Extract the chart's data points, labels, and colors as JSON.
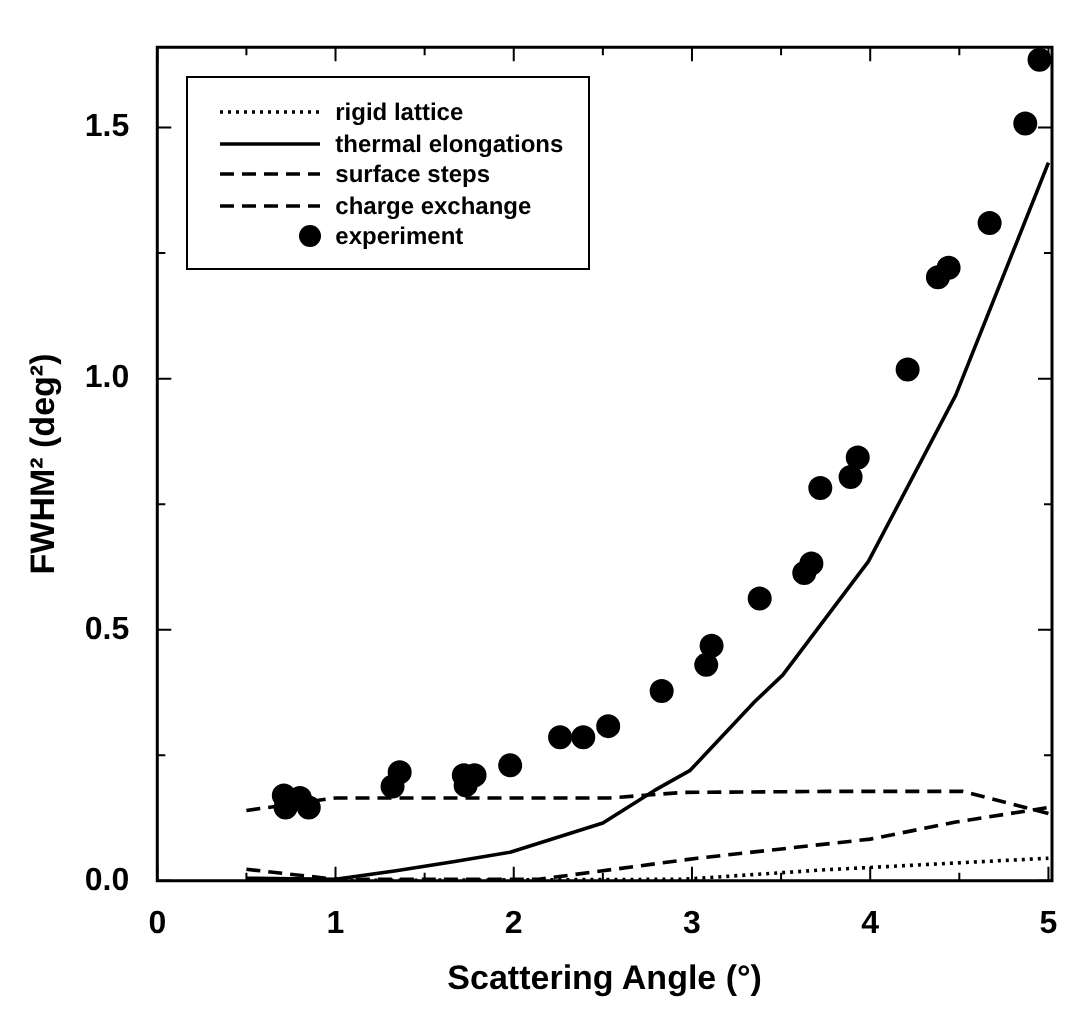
{
  "chart_data": {
    "type": "line",
    "xlabel": "Scattering Angle (°)",
    "ylabel": "FWHM² (deg²)",
    "xlim": [
      0,
      5.02
    ],
    "ylim": [
      0,
      1.66
    ],
    "xticks": [
      0,
      {
        "value": 0.5,
        "label": null
      },
      1,
      {
        "value": 1.5,
        "label": null
      },
      2,
      {
        "value": 2.5,
        "label": null
      },
      3,
      {
        "value": 3.5,
        "label": null
      },
      4,
      {
        "value": 4.5,
        "label": null
      },
      5
    ],
    "yticks": [
      {
        "value": 0,
        "label": "0.0"
      },
      {
        "value": 0.25,
        "label": null
      },
      {
        "value": 0.5,
        "label": "0.5"
      },
      {
        "value": 0.75,
        "label": null
      },
      {
        "value": 1,
        "label": "1.0"
      },
      {
        "value": 1.25,
        "label": null
      },
      {
        "value": 1.5,
        "label": "1.5"
      }
    ],
    "grid": false,
    "legend": "top left",
    "series": [
      {
        "name": "rigid lattice",
        "type": "line",
        "line_style": "dotted",
        "marker": "none",
        "color": "#000000",
        "x": [
          0.5,
          2.95,
          3.75,
          5.0
        ],
        "values": [
          0.0,
          0.003,
          0.022,
          0.045
        ]
      },
      {
        "name": "thermal elongations",
        "type": "line",
        "line_style": "solid",
        "marker": "none",
        "color": "#000000",
        "x": [
          0.5,
          1.0,
          1.34,
          1.66,
          1.98,
          2.5,
          2.79,
          2.99,
          3.35,
          3.51,
          3.99,
          4.48,
          5.0
        ],
        "values": [
          0.005,
          0.003,
          0.02,
          0.038,
          0.057,
          0.115,
          0.18,
          0.22,
          0.356,
          0.41,
          0.636,
          0.967,
          1.43
        ]
      },
      {
        "name": "surface steps",
        "type": "line",
        "line_style": "dashed",
        "marker": "none",
        "color": "#000000",
        "x": [
          0.5,
          1.0,
          2.14,
          2.5,
          3.03,
          4.0,
          4.48,
          5.0
        ],
        "values": [
          0.023,
          0.003,
          0.003,
          0.02,
          0.045,
          0.083,
          0.117,
          0.146
        ]
      },
      {
        "name": "charge exchange",
        "type": "line",
        "line_style": "dashed",
        "marker": "none",
        "color": "#000000",
        "x": [
          0.5,
          1.0,
          2.54,
          2.95,
          3.75,
          4.52,
          5.0
        ],
        "values": [
          0.14,
          0.165,
          0.165,
          0.176,
          0.178,
          0.178,
          0.134
        ]
      },
      {
        "name": "experiment",
        "type": "scatter",
        "marker": "circle",
        "color": "#000000",
        "x": [
          0.71,
          0.72,
          0.8,
          0.85,
          1.32,
          1.36,
          1.72,
          1.73,
          1.78,
          1.98,
          2.26,
          2.39,
          2.53,
          2.83,
          3.08,
          3.11,
          3.38,
          3.63,
          3.67,
          3.72,
          3.89,
          3.93,
          4.21,
          4.38,
          4.44,
          4.67,
          4.87,
          4.95
        ],
        "values": [
          0.17,
          0.146,
          0.165,
          0.146,
          0.188,
          0.216,
          0.21,
          0.19,
          0.21,
          0.23,
          0.286,
          0.286,
          0.308,
          0.378,
          0.43,
          0.468,
          0.562,
          0.613,
          0.632,
          0.782,
          0.804,
          0.843,
          1.018,
          1.202,
          1.221,
          1.31,
          1.508,
          1.635
        ]
      }
    ]
  }
}
